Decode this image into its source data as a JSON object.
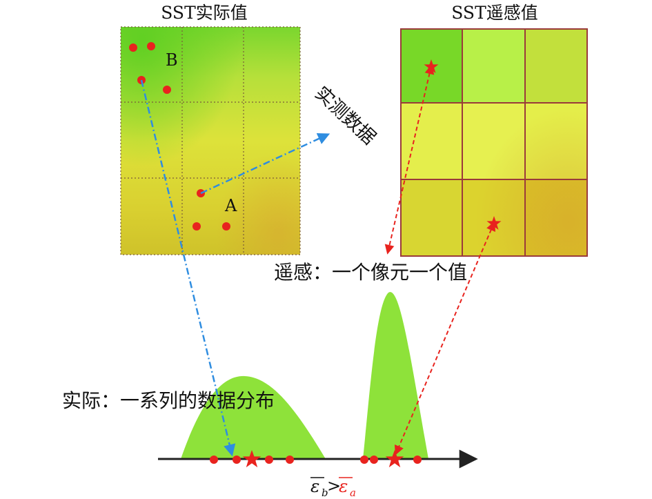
{
  "titles": {
    "actual": "SST实际值",
    "remote": "SST遥感值"
  },
  "points": {
    "a": "A",
    "b": "B"
  },
  "annotations": {
    "measured": "实测数据",
    "remote_caption": "遥感：一个像元一个值",
    "actual_caption": "实际：一系列的数据分布"
  },
  "formula": {
    "eps": "ε",
    "sub_b": "b",
    "gt": ">",
    "sub_a": "a"
  },
  "colors": {
    "green": "#8ee23a",
    "yellow": "#e5e63c",
    "point_red": "#e8231e",
    "blue_arrow": "#2f8de0",
    "red_arrow": "#e8231e",
    "grid_border": "#9a3a3a",
    "axis": "#222222"
  },
  "remote_cells": [
    "#78d828",
    "#b8f048",
    "#c2e03c",
    "#e4ee4c",
    "#e6f050",
    "#e4ee4a",
    "#d8d632",
    "#dcd32e",
    "#d9c426"
  ]
}
